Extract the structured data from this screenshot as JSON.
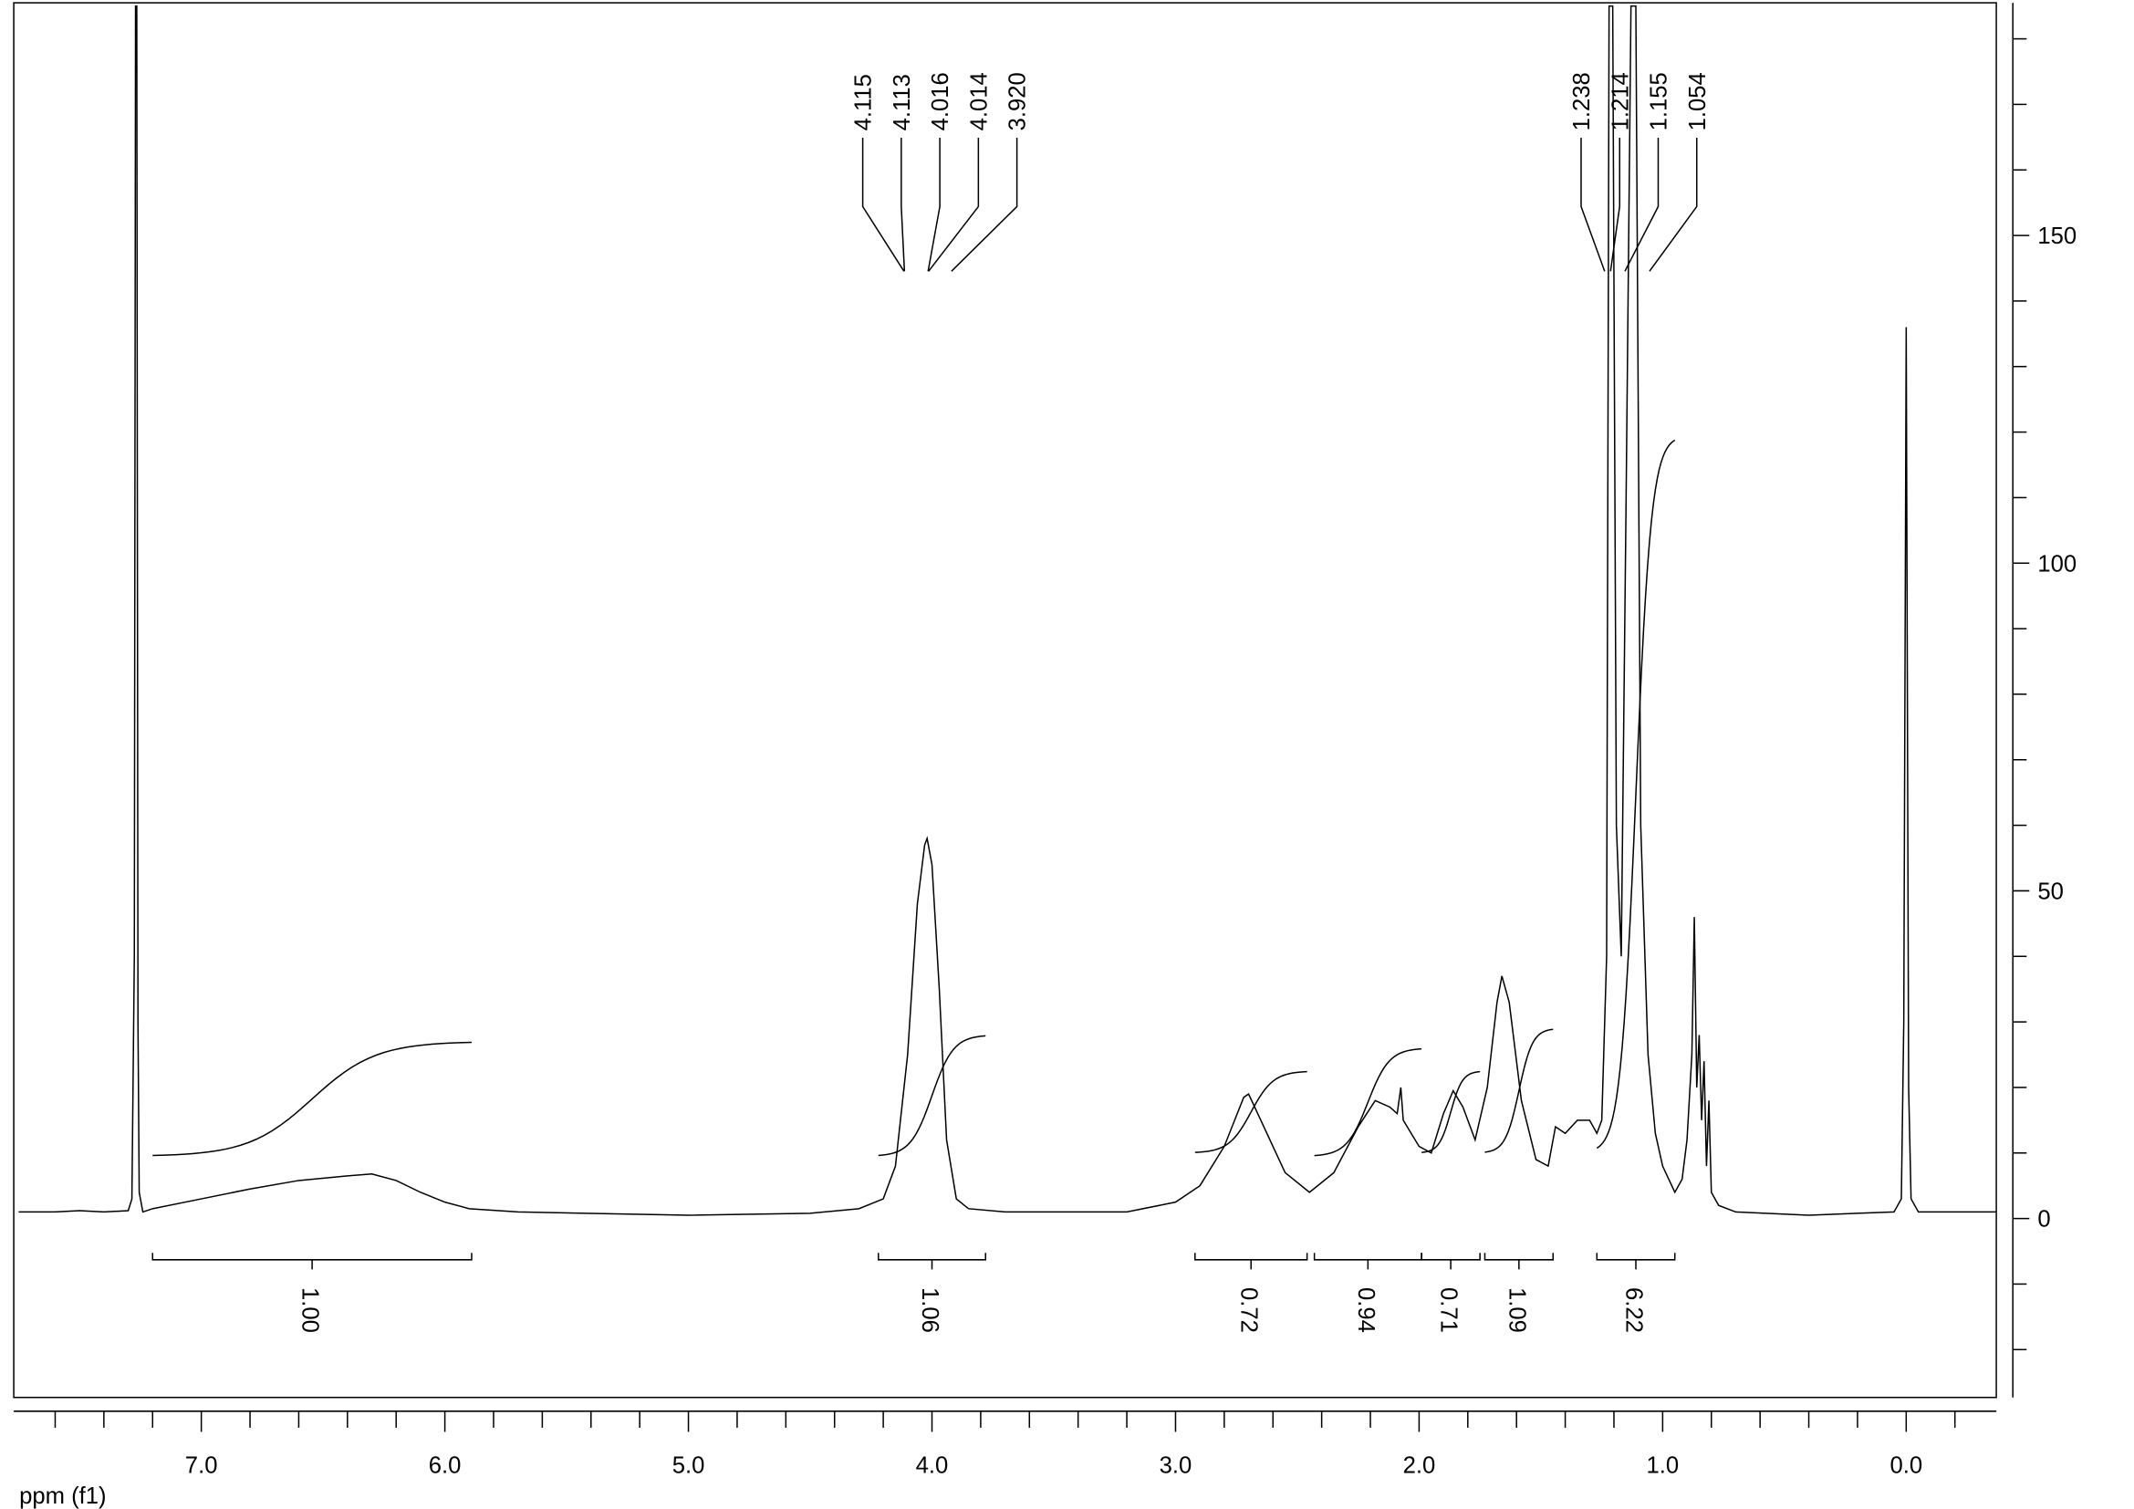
{
  "chart_data": {
    "type": "line",
    "x_label": "ppm (f1)",
    "xlim": [
      7.77,
      -0.37
    ],
    "xticks": [
      {
        "value": 7,
        "label": "7.0"
      },
      {
        "value": 6,
        "label": "6.0"
      },
      {
        "value": 5,
        "label": "5.0"
      },
      {
        "value": 4,
        "label": "4.0"
      },
      {
        "value": 3,
        "label": "3.0"
      },
      {
        "value": 2,
        "label": "2.0"
      },
      {
        "value": 1,
        "label": "1.0"
      },
      {
        "value": 0,
        "label": "0.0"
      }
    ],
    "xminorticks": [
      7.6,
      7.4,
      7.2,
      6.8,
      6.6,
      6.4,
      6.2,
      5.8,
      5.6,
      5.4,
      5.2,
      4.8,
      4.6,
      4.4,
      4.2,
      3.8,
      3.6,
      3.4,
      3.2,
      2.8,
      2.6,
      2.4,
      2.2,
      1.8,
      1.6,
      1.4,
      1.2,
      0.8,
      0.6,
      0.4,
      0.2,
      -0.2
    ],
    "ylim": [
      -27.3,
      185.5
    ],
    "yticks": [
      0,
      50,
      100,
      150
    ],
    "yminorticks": [
      -20,
      -10,
      10,
      20,
      30,
      40,
      60,
      70,
      80,
      90,
      110,
      120,
      130,
      140,
      160,
      170,
      180
    ],
    "color": "#000000",
    "x": [
      7.75,
      7.6,
      7.5,
      7.4,
      7.3,
      7.285,
      7.275,
      7.27,
      7.265,
      7.26,
      7.255,
      7.24,
      7.2,
      7.0,
      6.8,
      6.6,
      6.4,
      6.3,
      6.2,
      6.1,
      6.0,
      5.9,
      5.7,
      5.0,
      4.5,
      4.3,
      4.2,
      4.15,
      4.1,
      4.06,
      4.03,
      4.02,
      4.0,
      3.97,
      3.94,
      3.9,
      3.85,
      3.7,
      3.2,
      3.0,
      2.9,
      2.8,
      2.72,
      2.7,
      2.65,
      2.55,
      2.45,
      2.35,
      2.25,
      2.18,
      2.12,
      2.09,
      2.075,
      2.065,
      2.0,
      1.95,
      1.9,
      1.86,
      1.82,
      1.77,
      1.72,
      1.68,
      1.66,
      1.63,
      1.58,
      1.52,
      1.47,
      1.44,
      1.4,
      1.35,
      1.3,
      1.27,
      1.25,
      1.23,
      1.22,
      1.205,
      1.19,
      1.17,
      1.15,
      1.13,
      1.11,
      1.09,
      1.06,
      1.03,
      1.0,
      0.95,
      0.92,
      0.9,
      0.88,
      0.87,
      0.86,
      0.85,
      0.84,
      0.83,
      0.82,
      0.81,
      0.8,
      0.77,
      0.7,
      0.4,
      0.2,
      0.05,
      0.02,
      0.01,
      0.0,
      -0.01,
      -0.02,
      -0.05,
      -0.15,
      -0.37
    ],
    "values": [
      1,
      1,
      1.2,
      1,
      1.2,
      3,
      40,
      185,
      185,
      30,
      4,
      1,
      1.5,
      3,
      4.5,
      5.8,
      6.5,
      6.8,
      5.8,
      4,
      2.5,
      1.5,
      1,
      0.5,
      0.8,
      1.5,
      3,
      8,
      25,
      48,
      57,
      58,
      54,
      35,
      12,
      3,
      1.5,
      1,
      1,
      2.5,
      5,
      11,
      18.5,
      19,
      15,
      7,
      4,
      7,
      14,
      18,
      17,
      16,
      20,
      15,
      11,
      10,
      16,
      19.5,
      17,
      12,
      20,
      33,
      37,
      33,
      18,
      9,
      8,
      14,
      13,
      15,
      15,
      13,
      15,
      40,
      185,
      185,
      60,
      40,
      110,
      185,
      185,
      60,
      25,
      13,
      8,
      4,
      6,
      12,
      25,
      46,
      20,
      28,
      15,
      24,
      8,
      18,
      4,
      2,
      1,
      0.5,
      0.8,
      1,
      3,
      30,
      136,
      20,
      3,
      1,
      1,
      1
    ],
    "peaks": [
      {
        "value": 4.115,
        "label": "4.115"
      },
      {
        "value": 4.113,
        "label": "4.113"
      },
      {
        "value": 4.016,
        "label": "4.016"
      },
      {
        "value": 4.014,
        "label": "4.014"
      },
      {
        "value": 3.92,
        "label": "3.920"
      },
      {
        "value": 1.238,
        "label": "1.238"
      },
      {
        "value": 1.214,
        "label": "1.214"
      },
      {
        "value": 1.155,
        "label": "1.155"
      },
      {
        "value": 1.054,
        "label": "1.054"
      }
    ],
    "integrals": [
      {
        "from": 7.2,
        "to": 5.89,
        "value": 1.0,
        "value_label": "1.00",
        "curve": [
          9.5,
          27
        ]
      },
      {
        "from": 4.22,
        "to": 3.78,
        "value": 1.06,
        "value_label": "1.06",
        "curve": [
          9.5,
          28
        ]
      },
      {
        "from": 2.92,
        "to": 2.46,
        "value": 0.72,
        "value_label": "0.72",
        "curve": [
          10,
          22.5
        ]
      },
      {
        "from": 2.43,
        "to": 1.99,
        "value": 0.94,
        "value_label": "0.94",
        "curve": [
          9.5,
          26
        ]
      },
      {
        "from": 1.99,
        "to": 1.75,
        "value": 0.71,
        "value_label": "0.71",
        "curve": [
          10,
          22.5
        ]
      },
      {
        "from": 1.73,
        "to": 1.45,
        "value": 1.09,
        "value_label": "1.09",
        "curve": [
          10,
          29
        ]
      },
      {
        "from": 1.27,
        "to": 0.95,
        "value": 6.22,
        "value_label": "6.22",
        "curve": [
          10,
          119.5
        ]
      }
    ]
  }
}
